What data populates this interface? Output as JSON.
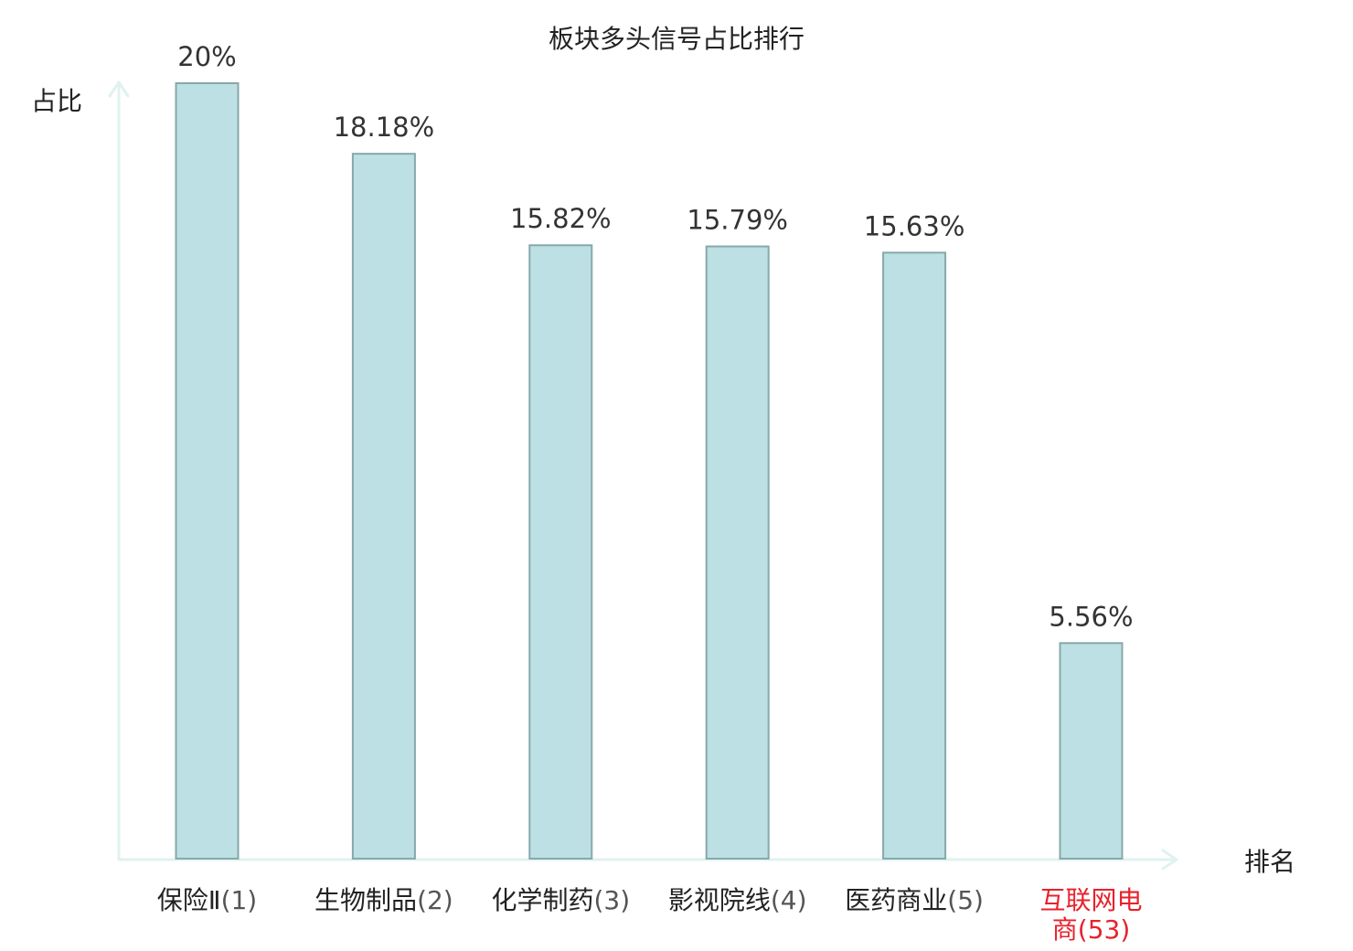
{
  "chart_data": {
    "type": "bar",
    "title": "板块多头信号占比排行",
    "ylabel": "占比",
    "xlabel": "排名",
    "ylim": [
      0,
      20
    ],
    "grid": false,
    "categories": [
      {
        "name": "保险Ⅱ",
        "rank": "(1)",
        "value": 20,
        "label": "20%",
        "highlight": false
      },
      {
        "name": "生物制品",
        "rank": "(2)",
        "value": 18.18,
        "label": "18.18%",
        "highlight": false
      },
      {
        "name": "化学制药",
        "rank": "(3)",
        "value": 15.82,
        "label": "15.82%",
        "highlight": false
      },
      {
        "name": "影视院线",
        "rank": "(4)",
        "value": 15.79,
        "label": "15.79%",
        "highlight": false
      },
      {
        "name": "医药商业",
        "rank": "(5)",
        "value": 15.63,
        "label": "15.63%",
        "highlight": false
      },
      {
        "name": "互联网电商",
        "rank": "(53)",
        "value": 5.56,
        "label": "5.56%",
        "highlight": true
      }
    ],
    "colors": {
      "bar_fill": "#bce0e3",
      "bar_stroke": "#87a8ab",
      "axis": "#dff2ef",
      "highlight_text": "#e8212b",
      "text": "#222222",
      "rank_text": "#555555"
    }
  }
}
